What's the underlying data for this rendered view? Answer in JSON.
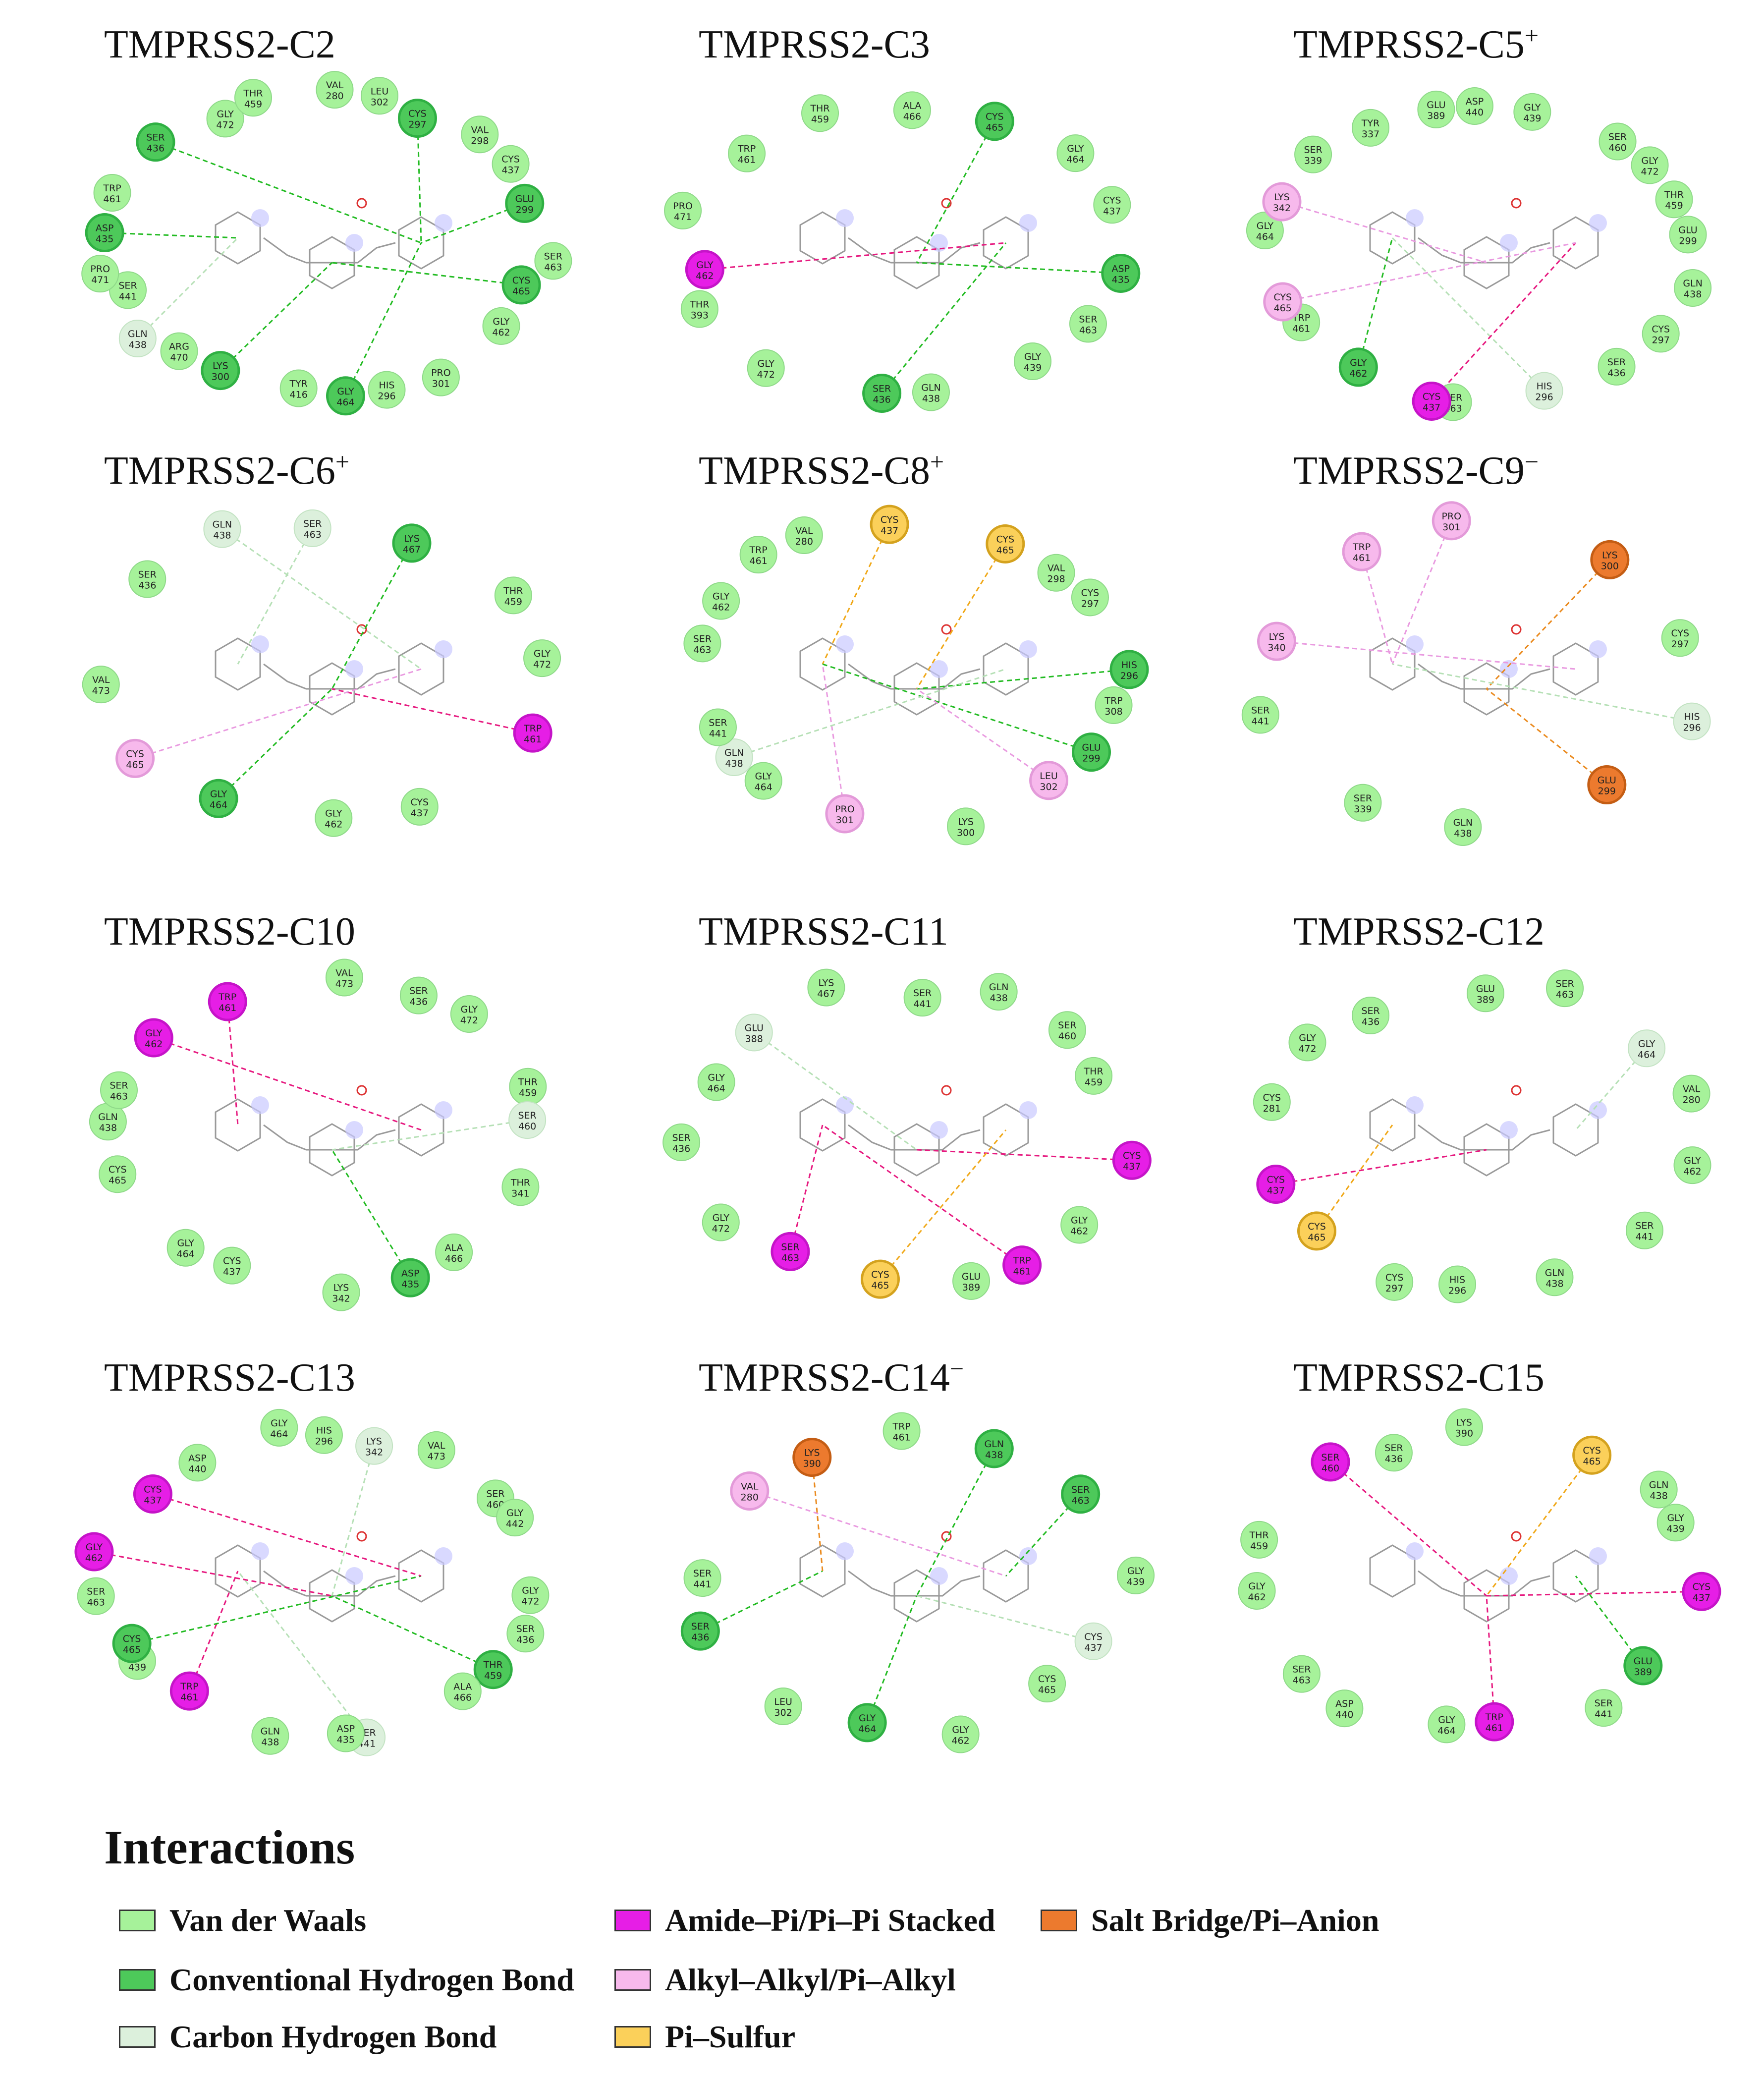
{
  "colors": {
    "vdw": "#a6f29a",
    "conv_hbond": "#4dc95a",
    "carbon_hbond": "#dcf0dc",
    "pi_stack": "#e61ee6",
    "alkyl": "#f7b9ec",
    "salt_bridge": "#ec7a2e",
    "pi_sulfur": "#fbd05a"
  },
  "legend": {
    "title": "Interactions",
    "items": [
      {
        "label": "Van der Waals",
        "type": "vdw"
      },
      {
        "label": "Amide–Pi/Pi–Pi Stacked",
        "type": "pi_stack"
      },
      {
        "label": "Salt Bridge/Pi–Anion",
        "type": "salt_bridge"
      },
      {
        "label": "Conventional Hydrogen Bond",
        "type": "conv_hbond"
      },
      {
        "label": "Alkyl–Alkyl/Pi–Alkyl",
        "type": "alkyl"
      },
      {
        "label": "Carbon Hydrogen Bond",
        "type": "carbon_hbond"
      },
      {
        "label": "Pi–Sulfur",
        "type": "pi_sulfur"
      }
    ]
  },
  "panels": [
    {
      "title": "TMPRSS2-C2",
      "charge": "",
      "residues": [
        {
          "n": "VAL",
          "num": "280",
          "t": "vdw"
        },
        {
          "n": "LEU",
          "num": "302",
          "t": "vdw"
        },
        {
          "n": "CYS",
          "num": "297",
          "t": "conv_hbond"
        },
        {
          "n": "VAL",
          "num": "298",
          "t": "vdw"
        },
        {
          "n": "CYS",
          "num": "437",
          "t": "vdw"
        },
        {
          "n": "GLU",
          "num": "299",
          "t": "conv_hbond"
        },
        {
          "n": "SER",
          "num": "463",
          "t": "vdw"
        },
        {
          "n": "CYS",
          "num": "465",
          "t": "conv_hbond"
        },
        {
          "n": "GLY",
          "num": "462",
          "t": "vdw"
        },
        {
          "n": "PRO",
          "num": "301",
          "t": "vdw"
        },
        {
          "n": "HIS",
          "num": "296",
          "t": "vdw"
        },
        {
          "n": "GLY",
          "num": "464",
          "t": "conv_hbond"
        },
        {
          "n": "TYR",
          "num": "416",
          "t": "vdw"
        },
        {
          "n": "LYS",
          "num": "300",
          "t": "conv_hbond"
        },
        {
          "n": "ARG",
          "num": "470",
          "t": "vdw"
        },
        {
          "n": "GLN",
          "num": "438",
          "t": "carbon_hbond"
        },
        {
          "n": "SER",
          "num": "441",
          "t": "vdw"
        },
        {
          "n": "PRO",
          "num": "471",
          "t": "vdw"
        },
        {
          "n": "ASP",
          "num": "435",
          "t": "conv_hbond"
        },
        {
          "n": "TRP",
          "num": "461",
          "t": "vdw"
        },
        {
          "n": "SER",
          "num": "436",
          "t": "conv_hbond"
        },
        {
          "n": "GLY",
          "num": "472",
          "t": "vdw"
        },
        {
          "n": "THR",
          "num": "459",
          "t": "vdw"
        }
      ]
    },
    {
      "title": "TMPRSS2-C3",
      "charge": "",
      "residues": [
        {
          "n": "ALA",
          "num": "466",
          "t": "vdw"
        },
        {
          "n": "CYS",
          "num": "465",
          "t": "conv_hbond"
        },
        {
          "n": "GLY",
          "num": "464",
          "t": "vdw"
        },
        {
          "n": "CYS",
          "num": "437",
          "t": "vdw"
        },
        {
          "n": "ASP",
          "num": "435",
          "t": "conv_hbond"
        },
        {
          "n": "SER",
          "num": "463",
          "t": "vdw"
        },
        {
          "n": "GLY",
          "num": "439",
          "t": "vdw"
        },
        {
          "n": "GLN",
          "num": "438",
          "t": "vdw"
        },
        {
          "n": "SER",
          "num": "436",
          "t": "conv_hbond"
        },
        {
          "n": "GLY",
          "num": "472",
          "t": "vdw"
        },
        {
          "n": "THR",
          "num": "393",
          "t": "vdw"
        },
        {
          "n": "GLY",
          "num": "462",
          "t": "pi_stack"
        },
        {
          "n": "PRO",
          "num": "471",
          "t": "vdw"
        },
        {
          "n": "TRP",
          "num": "461",
          "t": "vdw"
        },
        {
          "n": "THR",
          "num": "459",
          "t": "vdw"
        }
      ]
    },
    {
      "title": "TMPRSS2-C5",
      "charge": "+",
      "residues": [
        {
          "n": "ASP",
          "num": "440",
          "t": "vdw"
        },
        {
          "n": "GLY",
          "num": "439",
          "t": "vdw"
        },
        {
          "n": "SER",
          "num": "460",
          "t": "vdw"
        },
        {
          "n": "GLY",
          "num": "472",
          "t": "vdw"
        },
        {
          "n": "THR",
          "num": "459",
          "t": "vdw"
        },
        {
          "n": "GLU",
          "num": "299",
          "t": "vdw"
        },
        {
          "n": "GLN",
          "num": "438",
          "t": "vdw"
        },
        {
          "n": "CYS",
          "num": "297",
          "t": "vdw"
        },
        {
          "n": "SER",
          "num": "436",
          "t": "vdw"
        },
        {
          "n": "HIS",
          "num": "296",
          "t": "carbon_hbond"
        },
        {
          "n": "SER",
          "num": "463",
          "t": "vdw"
        },
        {
          "n": "CYS",
          "num": "437",
          "t": "pi_stack"
        },
        {
          "n": "GLY",
          "num": "462",
          "t": "conv_hbond"
        },
        {
          "n": "TRP",
          "num": "461",
          "t": "vdw"
        },
        {
          "n": "CYS",
          "num": "465",
          "t": "alkyl"
        },
        {
          "n": "GLY",
          "num": "464",
          "t": "vdw"
        },
        {
          "n": "LYS",
          "num": "342",
          "t": "alkyl"
        },
        {
          "n": "SER",
          "num": "339",
          "t": "vdw"
        },
        {
          "n": "TYR",
          "num": "337",
          "t": "vdw"
        },
        {
          "n": "GLU",
          "num": "389",
          "t": "vdw"
        }
      ]
    },
    {
      "title": "TMPRSS2-C6",
      "charge": "+",
      "residues": [
        {
          "n": "SER",
          "num": "463",
          "t": "carbon_hbond"
        },
        {
          "n": "LYS",
          "num": "467",
          "t": "conv_hbond"
        },
        {
          "n": "THR",
          "num": "459",
          "t": "vdw"
        },
        {
          "n": "GLY",
          "num": "472",
          "t": "vdw"
        },
        {
          "n": "TRP",
          "num": "461",
          "t": "pi_stack"
        },
        {
          "n": "CYS",
          "num": "437",
          "t": "vdw"
        },
        {
          "n": "GLY",
          "num": "462",
          "t": "vdw"
        },
        {
          "n": "GLY",
          "num": "464",
          "t": "conv_hbond"
        },
        {
          "n": "CYS",
          "num": "465",
          "t": "alkyl"
        },
        {
          "n": "VAL",
          "num": "473",
          "t": "vdw"
        },
        {
          "n": "SER",
          "num": "436",
          "t": "vdw"
        },
        {
          "n": "GLN",
          "num": "438",
          "t": "carbon_hbond"
        }
      ]
    },
    {
      "title": "TMPRSS2-C8",
      "charge": "+",
      "residues": [
        {
          "n": "CYS",
          "num": "437",
          "t": "pi_sulfur"
        },
        {
          "n": "CYS",
          "num": "465",
          "t": "pi_sulfur"
        },
        {
          "n": "VAL",
          "num": "298",
          "t": "vdw"
        },
        {
          "n": "CYS",
          "num": "297",
          "t": "vdw"
        },
        {
          "n": "HIS",
          "num": "296",
          "t": "conv_hbond"
        },
        {
          "n": "TRP",
          "num": "308",
          "t": "vdw"
        },
        {
          "n": "GLU",
          "num": "299",
          "t": "conv_hbond"
        },
        {
          "n": "LEU",
          "num": "302",
          "t": "alkyl"
        },
        {
          "n": "LYS",
          "num": "300",
          "t": "vdw"
        },
        {
          "n": "PRO",
          "num": "301",
          "t": "alkyl"
        },
        {
          "n": "GLY",
          "num": "464",
          "t": "vdw"
        },
        {
          "n": "GLN",
          "num": "438",
          "t": "carbon_hbond"
        },
        {
          "n": "SER",
          "num": "441",
          "t": "vdw"
        },
        {
          "n": "SER",
          "num": "463",
          "t": "vdw"
        },
        {
          "n": "GLY",
          "num": "462",
          "t": "vdw"
        },
        {
          "n": "TRP",
          "num": "461",
          "t": "vdw"
        },
        {
          "n": "VAL",
          "num": "280",
          "t": "vdw"
        }
      ]
    },
    {
      "title": "TMPRSS2-C9",
      "charge": "−",
      "residues": [
        {
          "n": "PRO",
          "num": "301",
          "t": "alkyl"
        },
        {
          "n": "LYS",
          "num": "300",
          "t": "salt_bridge"
        },
        {
          "n": "CYS",
          "num": "297",
          "t": "vdw"
        },
        {
          "n": "HIS",
          "num": "296",
          "t": "carbon_hbond"
        },
        {
          "n": "GLU",
          "num": "299",
          "t": "salt_bridge"
        },
        {
          "n": "GLN",
          "num": "438",
          "t": "vdw"
        },
        {
          "n": "SER",
          "num": "339",
          "t": "vdw"
        },
        {
          "n": "SER",
          "num": "441",
          "t": "vdw"
        },
        {
          "n": "LYS",
          "num": "340",
          "t": "alkyl"
        },
        {
          "n": "TRP",
          "num": "461",
          "t": "alkyl"
        }
      ]
    },
    {
      "title": "TMPRSS2-C10",
      "charge": "",
      "residues": [
        {
          "n": "VAL",
          "num": "473",
          "t": "vdw"
        },
        {
          "n": "SER",
          "num": "436",
          "t": "vdw"
        },
        {
          "n": "GLY",
          "num": "472",
          "t": "vdw"
        },
        {
          "n": "THR",
          "num": "459",
          "t": "vdw"
        },
        {
          "n": "SER",
          "num": "460",
          "t": "carbon_hbond"
        },
        {
          "n": "THR",
          "num": "341",
          "t": "vdw"
        },
        {
          "n": "ALA",
          "num": "466",
          "t": "vdw"
        },
        {
          "n": "ASP",
          "num": "435",
          "t": "conv_hbond"
        },
        {
          "n": "LYS",
          "num": "342",
          "t": "vdw"
        },
        {
          "n": "CYS",
          "num": "437",
          "t": "vdw"
        },
        {
          "n": "GLY",
          "num": "464",
          "t": "vdw"
        },
        {
          "n": "CYS",
          "num": "465",
          "t": "vdw"
        },
        {
          "n": "GLN",
          "num": "438",
          "t": "vdw"
        },
        {
          "n": "SER",
          "num": "463",
          "t": "vdw"
        },
        {
          "n": "GLY",
          "num": "462",
          "t": "pi_stack"
        },
        {
          "n": "TRP",
          "num": "461",
          "t": "pi_stack"
        }
      ]
    },
    {
      "title": "TMPRSS2-C11",
      "charge": "",
      "residues": [
        {
          "n": "SER",
          "num": "441",
          "t": "vdw"
        },
        {
          "n": "GLN",
          "num": "438",
          "t": "vdw"
        },
        {
          "n": "SER",
          "num": "460",
          "t": "vdw"
        },
        {
          "n": "THR",
          "num": "459",
          "t": "vdw"
        },
        {
          "n": "CYS",
          "num": "437",
          "t": "pi_stack"
        },
        {
          "n": "GLY",
          "num": "462",
          "t": "vdw"
        },
        {
          "n": "TRP",
          "num": "461",
          "t": "pi_stack"
        },
        {
          "n": "GLU",
          "num": "389",
          "t": "vdw"
        },
        {
          "n": "CYS",
          "num": "465",
          "t": "pi_sulfur"
        },
        {
          "n": "SER",
          "num": "463",
          "t": "pi_stack"
        },
        {
          "n": "GLY",
          "num": "472",
          "t": "vdw"
        },
        {
          "n": "SER",
          "num": "436",
          "t": "vdw"
        },
        {
          "n": "GLY",
          "num": "464",
          "t": "vdw"
        },
        {
          "n": "GLU",
          "num": "388",
          "t": "carbon_hbond"
        },
        {
          "n": "LYS",
          "num": "467",
          "t": "vdw"
        }
      ]
    },
    {
      "title": "TMPRSS2-C12",
      "charge": "",
      "residues": [
        {
          "n": "GLU",
          "num": "389",
          "t": "vdw"
        },
        {
          "n": "SER",
          "num": "463",
          "t": "vdw"
        },
        {
          "n": "GLY",
          "num": "464",
          "t": "carbon_hbond"
        },
        {
          "n": "VAL",
          "num": "280",
          "t": "vdw"
        },
        {
          "n": "GLY",
          "num": "462",
          "t": "vdw"
        },
        {
          "n": "SER",
          "num": "441",
          "t": "vdw"
        },
        {
          "n": "GLN",
          "num": "438",
          "t": "vdw"
        },
        {
          "n": "HIS",
          "num": "296",
          "t": "vdw"
        },
        {
          "n": "CYS",
          "num": "297",
          "t": "vdw"
        },
        {
          "n": "CYS",
          "num": "465",
          "t": "pi_sulfur"
        },
        {
          "n": "CYS",
          "num": "437",
          "t": "pi_stack"
        },
        {
          "n": "CYS",
          "num": "281",
          "t": "vdw"
        },
        {
          "n": "GLY",
          "num": "472",
          "t": "vdw"
        },
        {
          "n": "SER",
          "num": "436",
          "t": "vdw"
        }
      ]
    },
    {
      "title": "TMPRSS2-C13",
      "charge": "",
      "residues": [
        {
          "n": "HIS",
          "num": "296",
          "t": "vdw"
        },
        {
          "n": "LYS",
          "num": "342",
          "t": "carbon_hbond"
        },
        {
          "n": "VAL",
          "num": "473",
          "t": "vdw"
        },
        {
          "n": "SER",
          "num": "460",
          "t": "vdw"
        },
        {
          "n": "GLY",
          "num": "442",
          "t": "vdw"
        },
        {
          "n": "GLY",
          "num": "472",
          "t": "vdw"
        },
        {
          "n": "SER",
          "num": "436",
          "t": "vdw"
        },
        {
          "n": "THR",
          "num": "459",
          "t": "conv_hbond"
        },
        {
          "n": "ALA",
          "num": "466",
          "t": "vdw"
        },
        {
          "n": "SER",
          "num": "441",
          "t": "carbon_hbond"
        },
        {
          "n": "ASP",
          "num": "435",
          "t": "vdw"
        },
        {
          "n": "GLN",
          "num": "438",
          "t": "vdw"
        },
        {
          "n": "TRP",
          "num": "461",
          "t": "pi_stack"
        },
        {
          "n": "GLY",
          "num": "439",
          "t": "vdw"
        },
        {
          "n": "CYS",
          "num": "465",
          "t": "conv_hbond"
        },
        {
          "n": "SER",
          "num": "463",
          "t": "vdw"
        },
        {
          "n": "GLY",
          "num": "462",
          "t": "pi_stack"
        },
        {
          "n": "CYS",
          "num": "437",
          "t": "pi_stack"
        },
        {
          "n": "ASP",
          "num": "440",
          "t": "vdw"
        },
        {
          "n": "GLY",
          "num": "464",
          "t": "vdw"
        }
      ]
    },
    {
      "title": "TMPRSS2-C14",
      "charge": "−",
      "residues": [
        {
          "n": "TRP",
          "num": "461",
          "t": "vdw"
        },
        {
          "n": "GLN",
          "num": "438",
          "t": "conv_hbond"
        },
        {
          "n": "SER",
          "num": "463",
          "t": "conv_hbond"
        },
        {
          "n": "GLY",
          "num": "439",
          "t": "vdw"
        },
        {
          "n": "CYS",
          "num": "437",
          "t": "carbon_hbond"
        },
        {
          "n": "CYS",
          "num": "465",
          "t": "vdw"
        },
        {
          "n": "GLY",
          "num": "462",
          "t": "vdw"
        },
        {
          "n": "GLY",
          "num": "464",
          "t": "conv_hbond"
        },
        {
          "n": "LEU",
          "num": "302",
          "t": "vdw"
        },
        {
          "n": "SER",
          "num": "436",
          "t": "conv_hbond"
        },
        {
          "n": "SER",
          "num": "441",
          "t": "vdw"
        },
        {
          "n": "VAL",
          "num": "280",
          "t": "alkyl"
        },
        {
          "n": "LYS",
          "num": "390",
          "t": "salt_bridge"
        }
      ]
    },
    {
      "title": "TMPRSS2-C15",
      "charge": "",
      "residues": [
        {
          "n": "LYS",
          "num": "390",
          "t": "vdw"
        },
        {
          "n": "CYS",
          "num": "465",
          "t": "pi_sulfur"
        },
        {
          "n": "GLN",
          "num": "438",
          "t": "vdw"
        },
        {
          "n": "GLY",
          "num": "439",
          "t": "vdw"
        },
        {
          "n": "CYS",
          "num": "437",
          "t": "pi_stack"
        },
        {
          "n": "GLU",
          "num": "389",
          "t": "conv_hbond"
        },
        {
          "n": "SER",
          "num": "441",
          "t": "vdw"
        },
        {
          "n": "TRP",
          "num": "461",
          "t": "pi_stack"
        },
        {
          "n": "GLY",
          "num": "464",
          "t": "vdw"
        },
        {
          "n": "ASP",
          "num": "440",
          "t": "vdw"
        },
        {
          "n": "SER",
          "num": "463",
          "t": "vdw"
        },
        {
          "n": "GLY",
          "num": "462",
          "t": "vdw"
        },
        {
          "n": "THR",
          "num": "459",
          "t": "vdw"
        },
        {
          "n": "SER",
          "num": "460",
          "t": "pi_stack"
        },
        {
          "n": "SER",
          "num": "436",
          "t": "vdw"
        }
      ]
    }
  ]
}
